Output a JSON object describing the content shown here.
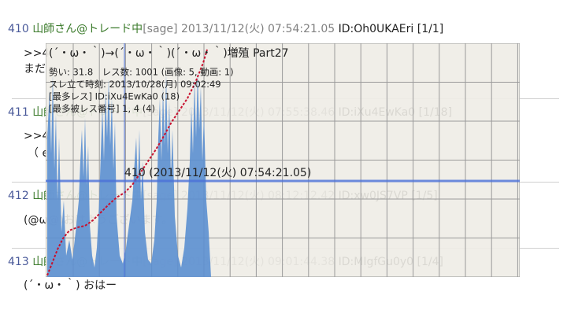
{
  "posts": [
    {
      "number": "410",
      "name": "山師さん@トレード中",
      "mail": "[sage]",
      "date": "2013/11/12(火) 07:54:21.05",
      "id": "ID:Oh0UKAEri",
      "count": "[1/1]",
      "lines": [
        ">>4",
        "まだ"
      ]
    },
    {
      "number": "411",
      "name": "山師さん@トレード中",
      "mail": "[sage]",
      "date": "2013/11/12(火) 07:55:38.46",
      "id": "ID:iXu4EwKa0",
      "count": "[1/18]",
      "lines": [
        ">>4",
        "（ e"
      ]
    },
    {
      "number": "412",
      "name": "山師さん@トレード中",
      "mail": "[sage]",
      "date": "2013/11/12(火) 08:12:12.42",
      "id": "ID:xw0JS7VP",
      "count": "[1/5]",
      "lines": [
        "(@ω@)おはようございます。"
      ]
    },
    {
      "number": "413",
      "name": "山師さん@トレード中",
      "mail": "[sage]",
      "date": "2013/11/12(火) 09:01:44.38",
      "id": "ID:MIgfGu0y0",
      "count": "[1/4]",
      "lines": [
        "(´・ω・｀) おはー"
      ]
    }
  ],
  "overlay": {
    "title": "(´・ω・｀)→(´・ω・｀)(´・ω・｀)増殖 Part27",
    "stats": [
      "勢い: 31.8　レス数: 1001 (画像: 5, 動画: 1)",
      "スレ立て時刻: 2013/10/28(月) 09:02:49",
      "[最多レス] ID:iXu4EwKa0 (18)",
      "[最多被レス番号] 1, 4 (4)"
    ],
    "marker": "410 (2013/11/12(火) 07:54:21.05)"
  }
}
